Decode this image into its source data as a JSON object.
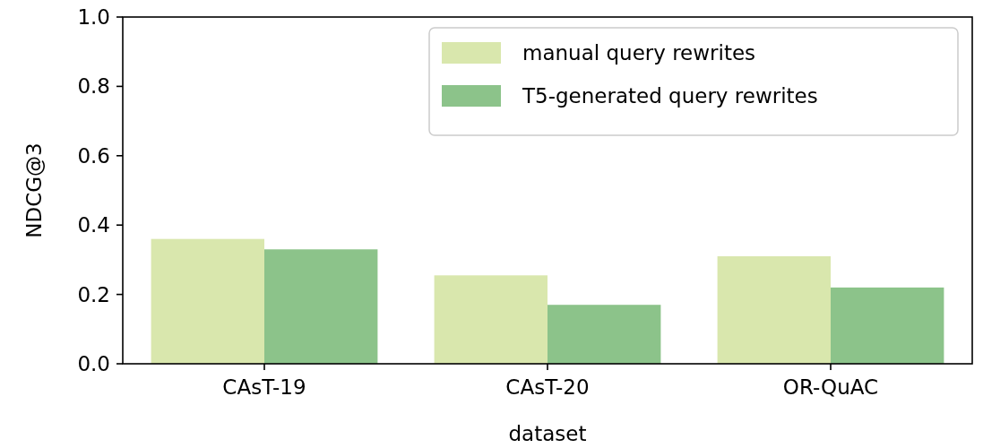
{
  "chart_data": {
    "type": "bar",
    "xlabel": "dataset",
    "ylabel": "NDCG@3",
    "categories": [
      "CAsT-19",
      "CAsT-20",
      "OR-QuAC"
    ],
    "series": [
      {
        "name": "manual query rewrites",
        "color": "#d9e7ad",
        "values": [
          0.36,
          0.255,
          0.31
        ]
      },
      {
        "name": "T5-generated query rewrites",
        "color": "#8cc38a",
        "values": [
          0.33,
          0.17,
          0.22
        ]
      }
    ],
    "ylim": [
      0,
      1
    ],
    "yticks": [
      {
        "value": 0,
        "label": "0.0"
      },
      {
        "value": 0.2,
        "label": "0.2"
      },
      {
        "value": 0.4,
        "label": "0.4"
      },
      {
        "value": 0.6,
        "label": "0.6"
      },
      {
        "value": 0.8,
        "label": "0.8"
      },
      {
        "value": 1,
        "label": "1.0"
      }
    ],
    "grid": false,
    "legend": "top right"
  }
}
